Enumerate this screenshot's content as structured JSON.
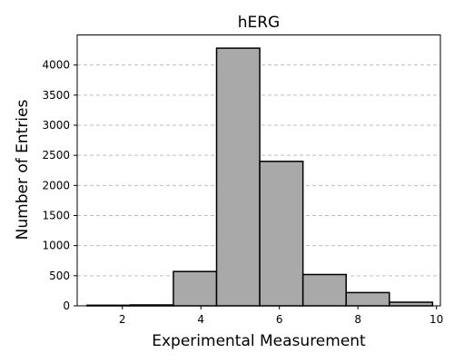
{
  "chart_data": {
    "type": "bar",
    "title": "hERG",
    "xlabel": "Experimental Measurement",
    "ylabel": "Number of Entries",
    "xlim": [
      0.85,
      10.1
    ],
    "ylim": [
      0,
      4500
    ],
    "xticks": [
      2,
      4,
      6,
      8,
      10
    ],
    "yticks": [
      0,
      500,
      1000,
      1500,
      2000,
      2500,
      3000,
      3500,
      4000
    ],
    "grid": "y-dashed",
    "bar_color": "#a9a9a9",
    "bins": [
      {
        "x0": 1.1,
        "x1": 2.2,
        "value": 10
      },
      {
        "x0": 2.2,
        "x1": 3.3,
        "value": 15
      },
      {
        "x0": 3.3,
        "x1": 4.4,
        "value": 570
      },
      {
        "x0": 4.4,
        "x1": 5.5,
        "value": 4280
      },
      {
        "x0": 5.5,
        "x1": 6.6,
        "value": 2400
      },
      {
        "x0": 6.6,
        "x1": 7.7,
        "value": 520
      },
      {
        "x0": 7.7,
        "x1": 8.8,
        "value": 220
      },
      {
        "x0": 8.8,
        "x1": 9.9,
        "value": 60
      }
    ]
  }
}
